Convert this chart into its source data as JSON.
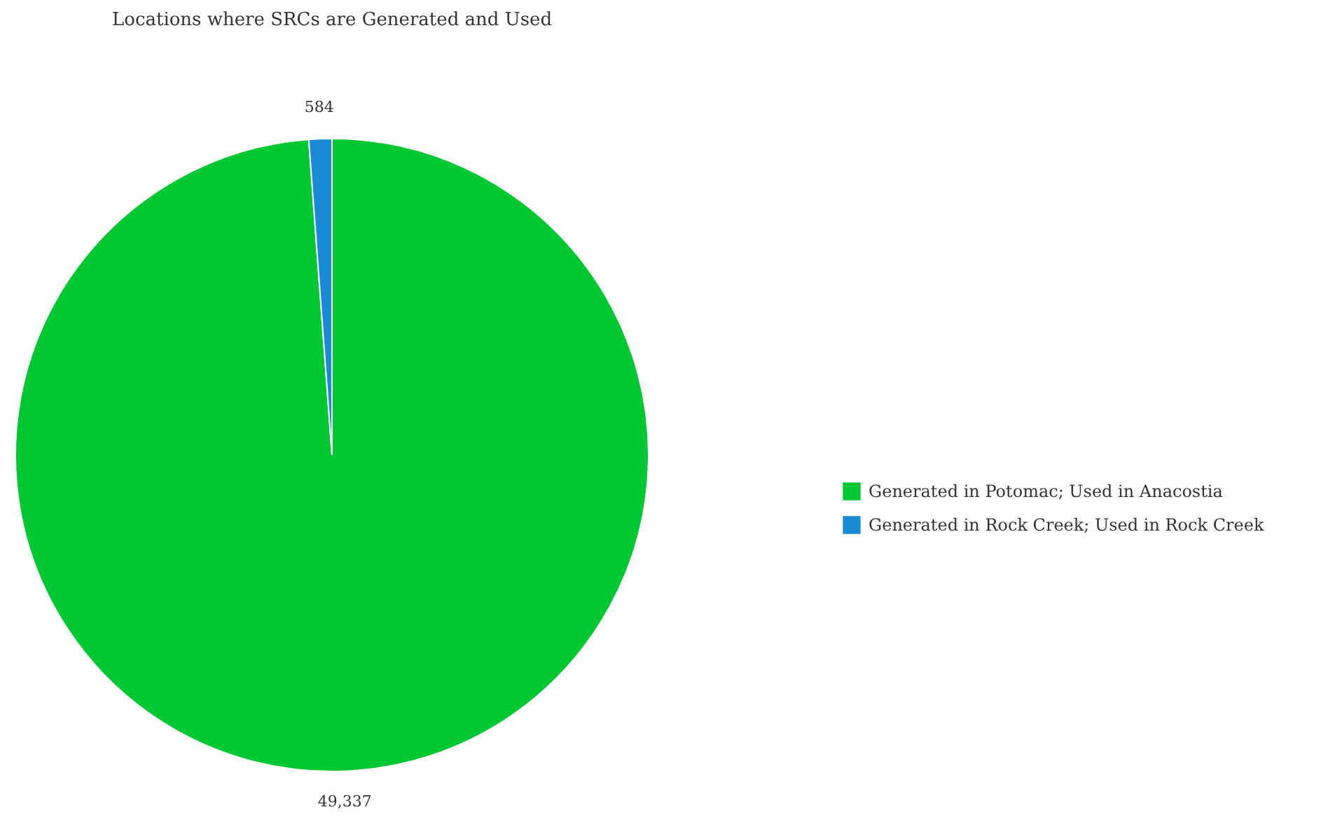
{
  "chart_data": {
    "type": "pie",
    "title": "Locations where SRCs are Generated and Used",
    "categories": [
      "Generated in Potomac; Used in Anacostia",
      "Generated in Rock Creek; Used in Rock Creek"
    ],
    "values": [
      49337,
      584
    ],
    "colors": [
      "#00c832",
      "#1a8ad4"
    ],
    "value_labels": [
      "49,337",
      "584"
    ],
    "legend": "right"
  }
}
